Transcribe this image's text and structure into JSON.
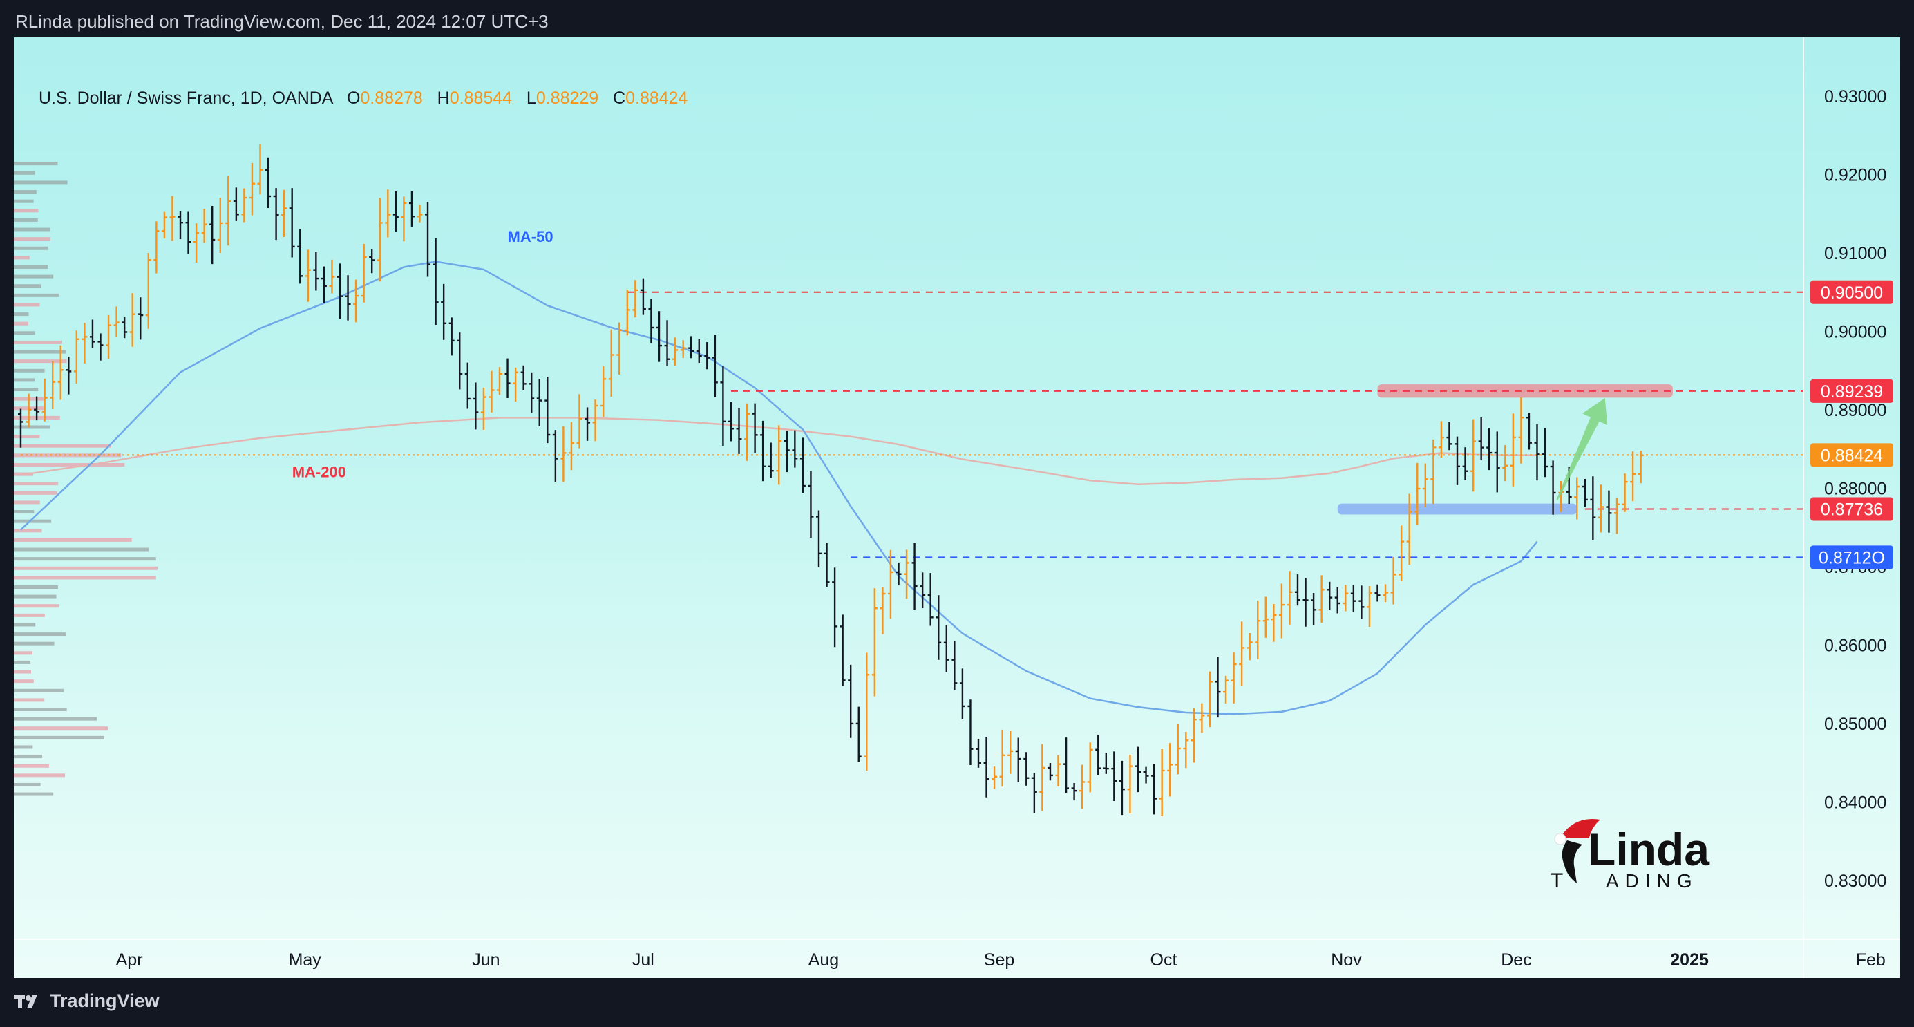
{
  "header": {
    "publish_line": "RLinda published on TradingView.com, Dec 11, 2024 12:07 UTC+3"
  },
  "legend": {
    "symbol": "U.S. Dollar / Swiss Franc, 1D, OANDA",
    "open_label": "O",
    "open_value": "0.88278",
    "high_label": "H",
    "high_value": "0.88544",
    "low_label": "L",
    "low_value": "0.88229",
    "close_label": "C",
    "close_value": "0.88424"
  },
  "footer": {
    "brand": "TradingView"
  },
  "watermark": {
    "text_top": "Linda",
    "text_bottom": "ADING",
    "initial": "T"
  },
  "colors": {
    "up_bar": "#f7931a",
    "down_bar": "#131722",
    "ma50": "#6fa8e8",
    "ma200": "#e4b4b0",
    "resistance": "#f23645",
    "support_blue": "#2962ff",
    "current_price": "#f7931a",
    "arrow": "#7fd47f"
  },
  "chart_data": {
    "type": "ohlc",
    "instrument": "U.S. Dollar / Swiss Franc",
    "timeframe": "1D",
    "source": "OANDA",
    "ylim": [
      0.8225,
      0.9375
    ],
    "y_ticks": [
      "0.93000",
      "0.92000",
      "0.91000",
      "0.90000",
      "0.89000",
      "0.88000",
      "0.87000",
      "0.86000",
      "0.85000",
      "0.84000",
      "0.83000"
    ],
    "y_tick_values": [
      0.93,
      0.92,
      0.91,
      0.9,
      0.89,
      0.88,
      0.87,
      0.86,
      0.85,
      0.84,
      0.83
    ],
    "x_ticks": [
      {
        "label": "Apr",
        "bar": 13.6
      },
      {
        "label": "May",
        "bar": 35.6
      },
      {
        "label": "Jun",
        "bar": 58.3
      },
      {
        "label": "Jul",
        "bar": 78.0
      },
      {
        "label": "Aug",
        "bar": 100.6
      },
      {
        "label": "Sep",
        "bar": 122.6
      },
      {
        "label": "Oct",
        "bar": 143.2
      },
      {
        "label": "Nov",
        "bar": 166.1
      },
      {
        "label": "Dec",
        "bar": 187.4
      },
      {
        "label": "2025",
        "bar": 209.1,
        "bold": true
      },
      {
        "label": "Feb",
        "bar": 231.8
      }
    ],
    "price_labels": [
      {
        "value": 0.905,
        "text": "0.90500",
        "color": "#f23645",
        "line": "dashed",
        "from_bar": 76
      },
      {
        "value": 0.89239,
        "text": "0.89239",
        "color": "#f23645",
        "line": "dashed",
        "from_bar": 89
      },
      {
        "value": 0.88424,
        "text": "0.88424",
        "color": "#f7931a",
        "line": "dotted",
        "from_bar": 0
      },
      {
        "value": 0.87736,
        "text": "0.87736",
        "color": "#f23645",
        "line": "dashed",
        "from_bar": 196
      },
      {
        "value": 0.8712,
        "text": "0.8712O",
        "color": "#2962ff",
        "line": "dashed",
        "from_bar": 104
      }
    ],
    "zones": [
      {
        "from_bar": 170,
        "to_bar": 207,
        "top": 0.89325,
        "bottom": 0.89155,
        "color": "red"
      },
      {
        "from_bar": 165,
        "to_bar": 195,
        "top": 0.87805,
        "bottom": 0.87665,
        "color": "blue"
      }
    ],
    "annotations": [
      {
        "text": "MA-50",
        "bar": 61,
        "value": 0.9114,
        "color": "#2962ff"
      },
      {
        "text": "MA-200",
        "bar": 34,
        "value": 0.8814,
        "color": "#f23645"
      }
    ],
    "arrow": {
      "from_bar": 192.5,
      "from_value": 0.8785,
      "to_bar": 198.5,
      "to_value": 0.8915
    },
    "ma50": [
      [
        0,
        0.8747
      ],
      [
        10,
        0.8843
      ],
      [
        20,
        0.8948
      ],
      [
        30,
        0.9004
      ],
      [
        40,
        0.9044
      ],
      [
        48,
        0.9082
      ],
      [
        52,
        0.9089
      ],
      [
        58,
        0.9079
      ],
      [
        66,
        0.9033
      ],
      [
        74,
        0.9005
      ],
      [
        80,
        0.8989
      ],
      [
        86,
        0.8968
      ],
      [
        92,
        0.8928
      ],
      [
        98,
        0.8875
      ],
      [
        104,
        0.8777
      ],
      [
        110,
        0.8688
      ],
      [
        118,
        0.8615
      ],
      [
        126,
        0.8567
      ],
      [
        134,
        0.8532
      ],
      [
        140,
        0.8521
      ],
      [
        146,
        0.8514
      ],
      [
        152,
        0.8512
      ],
      [
        158,
        0.8515
      ],
      [
        164,
        0.8529
      ],
      [
        170,
        0.8564
      ],
      [
        176,
        0.8626
      ],
      [
        182,
        0.8677
      ],
      [
        188,
        0.8707
      ],
      [
        190,
        0.8732
      ]
    ],
    "ma200": [
      [
        0,
        0.8817
      ],
      [
        10,
        0.8832
      ],
      [
        20,
        0.885
      ],
      [
        30,
        0.8864
      ],
      [
        40,
        0.8874
      ],
      [
        50,
        0.8884
      ],
      [
        60,
        0.889
      ],
      [
        70,
        0.889
      ],
      [
        80,
        0.8887
      ],
      [
        90,
        0.888
      ],
      [
        96,
        0.8875
      ],
      [
        104,
        0.8866
      ],
      [
        110,
        0.8856
      ],
      [
        118,
        0.8837
      ],
      [
        126,
        0.8824
      ],
      [
        134,
        0.881
      ],
      [
        140,
        0.8805
      ],
      [
        146,
        0.8807
      ],
      [
        152,
        0.8811
      ],
      [
        158,
        0.8813
      ],
      [
        164,
        0.8819
      ],
      [
        168,
        0.8828
      ],
      [
        172,
        0.8838
      ],
      [
        178,
        0.8845
      ],
      [
        182,
        0.8843
      ],
      [
        186,
        0.8842
      ],
      [
        190,
        0.8842
      ]
    ],
    "segments": [
      {
        "start": 0.8885,
        "start_bar": 0,
        "points": [
          [
            8,
            0.899
          ],
          [
            10,
            0.899
          ],
          [
            15,
            0.903
          ],
          [
            17,
            0.914
          ],
          [
            20,
            0.915
          ],
          [
            22,
            0.911
          ],
          [
            27,
            0.916
          ],
          [
            30,
            0.92
          ],
          [
            33,
            0.914
          ],
          [
            35,
            0.908
          ],
          [
            38,
            0.907
          ],
          [
            41,
            0.904
          ],
          [
            44,
            0.91
          ],
          [
            46,
            0.915
          ],
          [
            48,
            0.916
          ],
          [
            50,
            0.914
          ],
          [
            51,
            0.908
          ],
          [
            55,
            0.896
          ],
          [
            57,
            0.89
          ],
          [
            62,
            0.895
          ],
          [
            65,
            0.89
          ],
          [
            67,
            0.884
          ],
          [
            70,
            0.888
          ],
          [
            73,
            0.893
          ],
          [
            77,
            0.904
          ],
          [
            80,
            0.898
          ],
          [
            84,
            0.8985
          ],
          [
            86,
            0.896
          ],
          [
            89,
            0.886
          ],
          [
            91,
            0.89
          ],
          [
            93,
            0.883
          ],
          [
            96,
            0.885
          ],
          [
            98,
            0.88
          ],
          [
            100,
            0.873
          ],
          [
            102,
            0.861
          ],
          [
            105,
            0.847
          ],
          [
            107,
            0.864
          ],
          [
            110,
            0.87
          ],
          [
            113,
            0.868
          ],
          [
            115,
            0.862
          ],
          [
            117,
            0.854
          ],
          [
            120,
            0.845
          ],
          [
            122,
            0.844
          ],
          [
            124,
            0.848
          ],
          [
            127,
            0.842
          ],
          [
            130,
            0.846
          ],
          [
            132,
            0.841
          ],
          [
            134,
            0.847
          ],
          [
            137,
            0.843
          ],
          [
            140,
            0.844
          ],
          [
            142,
            0.841
          ],
          [
            144,
            0.844
          ],
          [
            147,
            0.851
          ],
          [
            151,
            0.857
          ],
          [
            154,
            0.862
          ],
          [
            158,
            0.865
          ],
          [
            161,
            0.866
          ],
          [
            164,
            0.8655
          ],
          [
            167,
            0.865
          ],
          [
            170,
            0.865
          ],
          [
            172,
            0.869
          ],
          [
            174,
            0.876
          ],
          [
            176,
            0.881
          ],
          [
            178,
            0.886
          ],
          [
            180,
            0.883
          ],
          [
            183,
            0.885
          ],
          [
            186,
            0.882
          ],
          [
            188,
            0.889
          ],
          [
            190,
            0.883
          ],
          [
            192,
            0.881
          ],
          [
            194,
            0.879
          ],
          [
            196,
            0.878
          ],
          [
            198,
            0.877
          ],
          [
            200,
            0.879
          ],
          [
            203,
            0.8842
          ]
        ]
      }
    ]
  }
}
